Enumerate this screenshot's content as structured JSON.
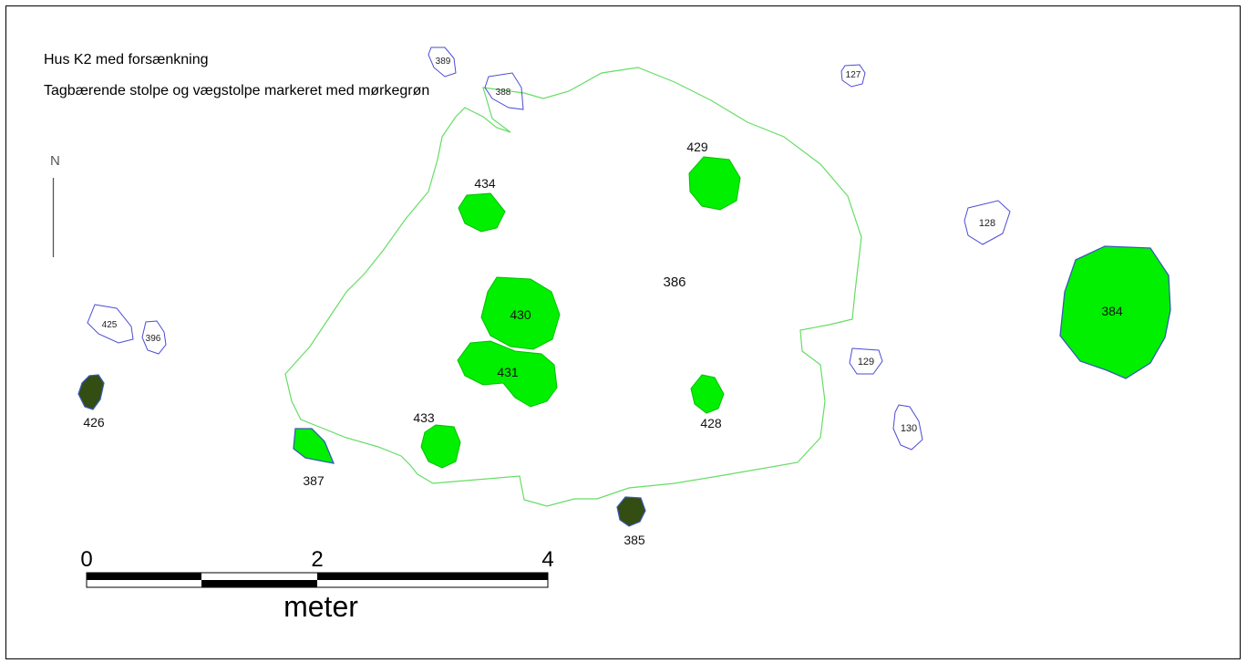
{
  "map": {
    "title": "Hus K2 med forsænkning",
    "subtitle": "Tagbærende stolpe og vægstolpe markeret med mørkegrøn",
    "north_label": "N",
    "house_label": "386",
    "scale": {
      "tick_0": "0",
      "tick_2": "2",
      "tick_4": "4",
      "unit": "meter"
    },
    "colors": {
      "green_fill": "#00f000",
      "dark_fill": "#334d13",
      "outline_blue": "#4b4bd6",
      "house_outline": "#66dd66"
    },
    "features": {
      "f384": {
        "label": "384",
        "kind": "green"
      },
      "f385": {
        "label": "385",
        "kind": "dark"
      },
      "f387": {
        "label": "387",
        "kind": "green"
      },
      "f426": {
        "label": "426",
        "kind": "dark"
      },
      "f428": {
        "label": "428",
        "kind": "green"
      },
      "f429": {
        "label": "429",
        "kind": "green"
      },
      "f430": {
        "label": "430",
        "kind": "green"
      },
      "f431": {
        "label": "431",
        "kind": "green"
      },
      "f433": {
        "label": "433",
        "kind": "green"
      },
      "f434": {
        "label": "434",
        "kind": "green"
      },
      "f127": {
        "label": "127",
        "kind": "outline"
      },
      "f128": {
        "label": "128",
        "kind": "outline"
      },
      "f129": {
        "label": "129",
        "kind": "outline"
      },
      "f130": {
        "label": "130",
        "kind": "outline"
      },
      "f388": {
        "label": "388",
        "kind": "outline"
      },
      "f389": {
        "label": "389",
        "kind": "outline"
      },
      "f396": {
        "label": "396",
        "kind": "outline"
      },
      "f425": {
        "label": "425",
        "kind": "outline"
      }
    }
  }
}
